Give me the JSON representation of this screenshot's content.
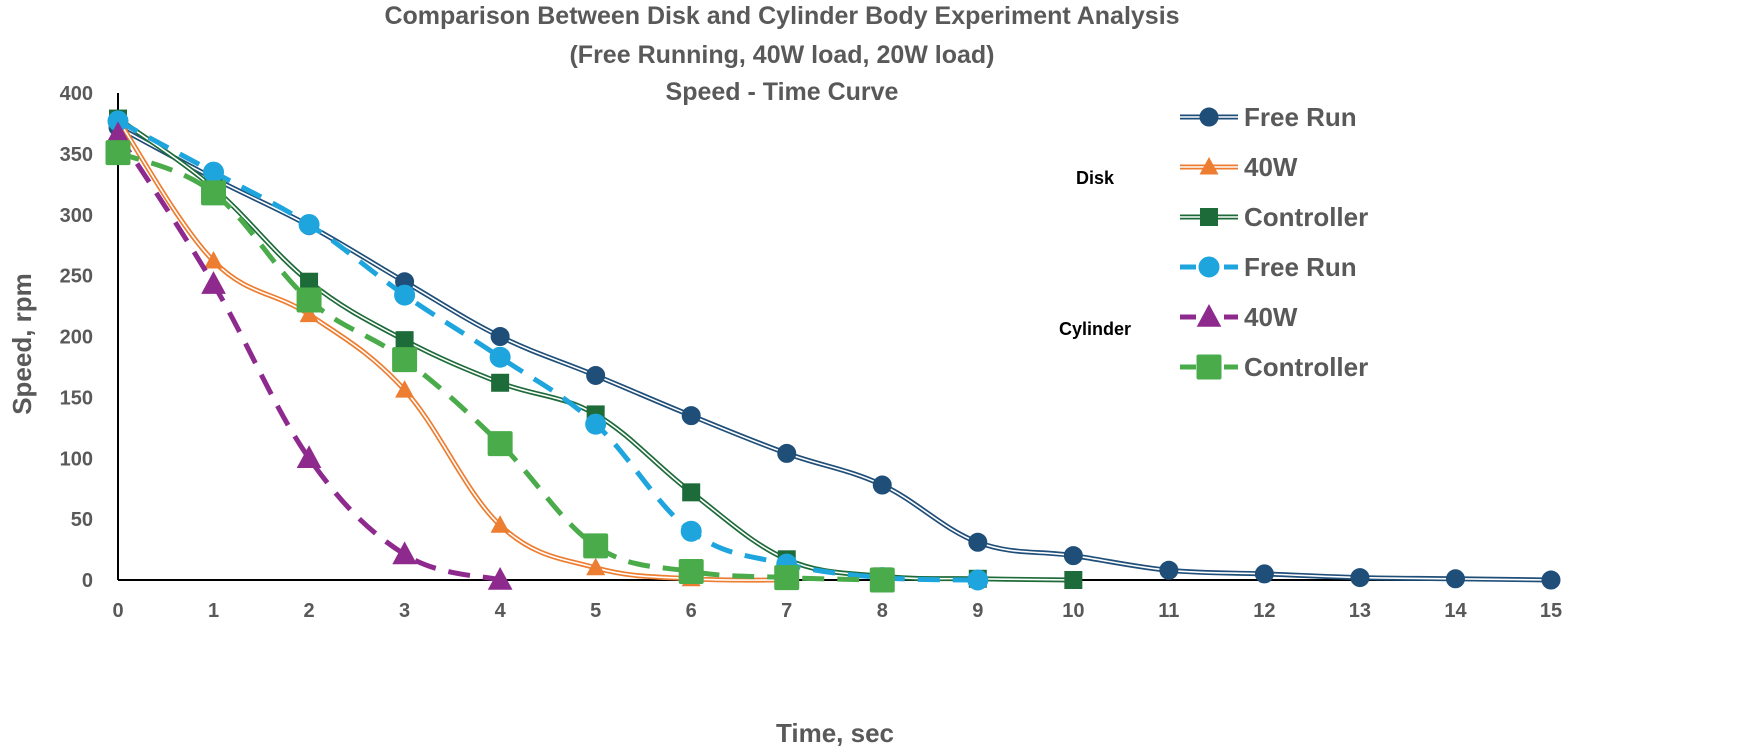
{
  "chart_data": {
    "type": "line",
    "title": [
      "Comparison Between Disk and Cylinder Body Experiment Analysis",
      "(Free Running, 40W load, 20W load)",
      "Speed - Time Curve"
    ],
    "xlabel": "Time, sec",
    "ylabel": "Speed, rpm",
    "xlim": [
      0,
      15
    ],
    "ylim": [
      0,
      400
    ],
    "xticks": [
      0,
      1,
      2,
      3,
      4,
      5,
      6,
      7,
      8,
      9,
      10,
      11,
      12,
      13,
      14,
      15
    ],
    "yticks": [
      0,
      50,
      100,
      150,
      200,
      250,
      300,
      350,
      400
    ],
    "grid": false,
    "legend_position": "right",
    "legend_groups": [
      {
        "label": "Disk",
        "series": [
          0,
          1,
          2
        ]
      },
      {
        "label": "Cylinder",
        "series": [
          3,
          4,
          5
        ]
      }
    ],
    "series": [
      {
        "name": "Free Run",
        "group": "Disk",
        "color": "#1f4e79",
        "marker": "circle",
        "line": "double",
        "x": [
          0,
          1,
          2,
          3,
          4,
          5,
          6,
          7,
          8,
          9,
          10,
          11,
          12,
          13,
          14,
          15
        ],
        "y": [
          372,
          330,
          291,
          245,
          200,
          168,
          135,
          104,
          78,
          31,
          20,
          8,
          5,
          2,
          1,
          0
        ]
      },
      {
        "name": "40W",
        "group": "Disk",
        "color": "#ed7d31",
        "marker": "triangle",
        "line": "double",
        "x": [
          0,
          1,
          2,
          3,
          4,
          5,
          6,
          7
        ],
        "y": [
          378,
          262,
          218,
          156,
          45,
          10,
          1,
          0
        ]
      },
      {
        "name": "Controller",
        "group": "Disk",
        "color": "#1e6b3a",
        "marker": "square",
        "line": "double",
        "x": [
          0,
          1,
          2,
          3,
          4,
          5,
          6,
          7,
          8,
          9,
          10
        ],
        "y": [
          379,
          322,
          245,
          197,
          162,
          136,
          72,
          17,
          3,
          1,
          0
        ]
      },
      {
        "name": "Free Run",
        "group": "Cylinder",
        "color": "#1ea5de",
        "marker": "circle",
        "line": "dashed",
        "x": [
          0,
          1,
          2,
          3,
          4,
          5,
          6,
          7,
          8,
          9
        ],
        "y": [
          377,
          335,
          292,
          234,
          183,
          128,
          40,
          13,
          2,
          0
        ]
      },
      {
        "name": "40W",
        "group": "Cylinder",
        "color": "#8e2a8e",
        "marker": "triangle",
        "line": "dashed",
        "x": [
          0,
          1,
          2,
          3,
          4
        ],
        "y": [
          366,
          243,
          100,
          21,
          0
        ]
      },
      {
        "name": "Controller",
        "group": "Cylinder",
        "color": "#4aab4a",
        "marker": "square",
        "line": "dashed",
        "x": [
          0,
          1,
          2,
          3,
          4,
          5,
          6,
          7,
          8
        ],
        "y": [
          351,
          318,
          230,
          181,
          112,
          28,
          7,
          2,
          0
        ]
      }
    ]
  }
}
